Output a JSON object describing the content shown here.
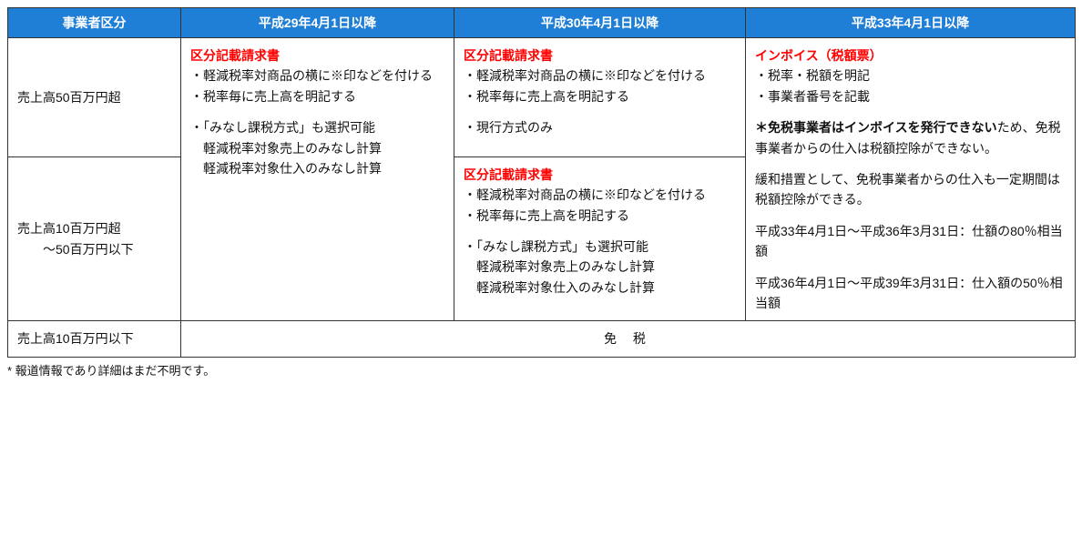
{
  "style": {
    "header_bg": "#1f7ed6",
    "header_fg": "#ffffff",
    "border": "#333333",
    "text": "#111111",
    "red": "#ff0000",
    "col_widths": [
      "190px",
      "300px",
      "320px",
      "362px"
    ]
  },
  "headers": {
    "c0": "事業者区分",
    "c1": "平成29年4月1日以降",
    "c2": "平成30年4月1日以降",
    "c3": "平成33年4月1日以降"
  },
  "rows": {
    "r1_label": "売上高50百万円超",
    "r2_label_a": "売上高10百万円超",
    "r2_label_b": "　　～50百万円以下",
    "r3_label": "売上高10百万円以下"
  },
  "col1": {
    "title": "区分記載請求書",
    "b1": "・軽減税率対商品の横に※印などを付ける",
    "b2": "・税率毎に売上高を明記する",
    "b3": "・「みなし課税方式」も選択可能",
    "b4": "　軽減税率対象売上のみなし計算",
    "b5": "　軽減税率対象仕入のみなし計算"
  },
  "col2a": {
    "title": "区分記載請求書",
    "b1": "・軽減税率対商品の横に※印などを付ける",
    "b2": "・税率毎に売上高を明記する",
    "b3": "・現行方式のみ"
  },
  "col2b": {
    "title": "区分記載請求書",
    "b1": "・軽減税率対商品の横に※印などを付ける",
    "b2": "・税率毎に売上高を明記する",
    "b3": "・「みなし課税方式」も選択可能",
    "b4": "　軽減税率対象売上のみなし計算",
    "b5": "　軽減税率対象仕入のみなし計算"
  },
  "col3": {
    "title": "インボイス（税額票）",
    "b1": "・税率・税額を明記",
    "b2": "・事業者番号を記載",
    "warn_bold": "＊免税事業者はインボイスを発行できない",
    "warn_rest": "ため、免税事業者からの仕入は税額控除ができない。",
    "t1": "緩和措置として、免税事業者からの仕入も一定期間は税額控除ができる。",
    "t2": "平成33年4月1日～平成36年3月31日：仕額の80％相当額",
    "t3": "平成36年4月1日～平成39年3月31日：仕入額の50％相当額"
  },
  "exempt": "免 税",
  "footnote": "* 報道情報であり詳細はまだ不明です。"
}
